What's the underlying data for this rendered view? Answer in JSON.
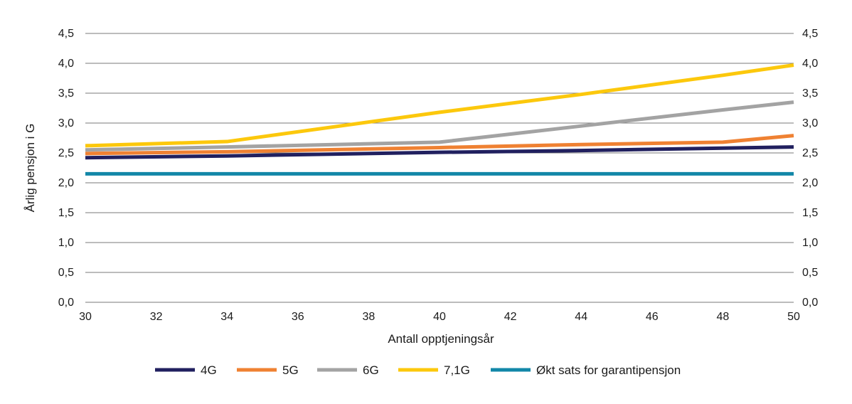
{
  "chart_data": {
    "type": "line",
    "xlabel": "Antall opptjeningsår",
    "ylabel": "Årlig pensjon i G",
    "xlim": [
      30,
      50
    ],
    "ylim": [
      0,
      4.5
    ],
    "x_ticks": [
      "30",
      "32",
      "34",
      "36",
      "38",
      "40",
      "42",
      "44",
      "46",
      "48",
      "50"
    ],
    "y_ticks": [
      "0,0",
      "0,5",
      "1,0",
      "1,5",
      "2,0",
      "2,5",
      "3,0",
      "3,5",
      "4,0",
      "4,5"
    ],
    "y_tick_values": [
      0,
      0.5,
      1.0,
      1.5,
      2.0,
      2.5,
      3.0,
      3.5,
      4.0,
      4.5
    ],
    "legend_position": "bottom",
    "series": [
      {
        "name": "4G",
        "color": "#21205f",
        "x": [
          30,
          34,
          40,
          44,
          48,
          50
        ],
        "y": [
          2.42,
          2.45,
          2.51,
          2.54,
          2.58,
          2.6
        ]
      },
      {
        "name": "5G",
        "color": "#ef8132",
        "x": [
          30,
          34,
          40,
          44,
          48,
          50
        ],
        "y": [
          2.49,
          2.52,
          2.59,
          2.64,
          2.68,
          2.79
        ]
      },
      {
        "name": "6G",
        "color": "#a3a3a3",
        "x": [
          30,
          34,
          40,
          44,
          48,
          50
        ],
        "y": [
          2.55,
          2.6,
          2.68,
          2.95,
          3.22,
          3.35
        ]
      },
      {
        "name": "7,1G",
        "color": "#fcc80c",
        "x": [
          30,
          34,
          40,
          44,
          48,
          50
        ],
        "y": [
          2.62,
          2.69,
          3.18,
          3.48,
          3.8,
          3.97
        ]
      },
      {
        "name": "Økt sats for garantipensjon",
        "color": "#1287a8",
        "x": [
          30,
          50
        ],
        "y": [
          2.15,
          2.15
        ]
      }
    ]
  }
}
